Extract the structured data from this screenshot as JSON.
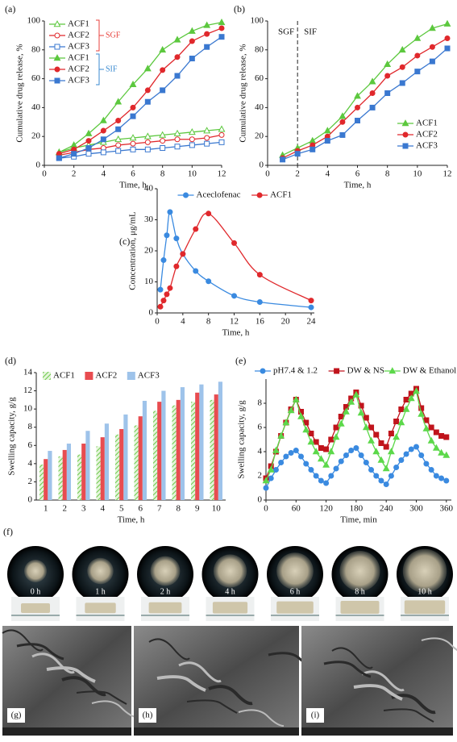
{
  "chart_data": [
    {
      "type": "line",
      "panel_label": "(a)",
      "xlabel": "Time, h",
      "ylabel": "Cumulative drug release, %",
      "xlim": [
        0,
        12
      ],
      "ylim": [
        0,
        100
      ],
      "xticks": [
        0,
        2,
        4,
        6,
        8,
        10,
        12
      ],
      "yticks": [
        0,
        20,
        40,
        60,
        80,
        100
      ],
      "legend": "upper left",
      "x": [
        1,
        2,
        3,
        4,
        5,
        6,
        7,
        8,
        9,
        10,
        11,
        12
      ],
      "groups": [
        {
          "name": "SGF",
          "color": "#e8413c",
          "series": [
            {
              "name": "ACF1",
              "color": "#5cc83e",
              "marker": "triangle",
              "filled": false,
              "values": [
                9,
                12,
                14,
                16,
                18,
                19,
                20,
                21,
                22,
                23,
                24,
                25
              ]
            },
            {
              "name": "ACF2",
              "color": "#e0282c",
              "marker": "circle",
              "filled": false,
              "values": [
                7,
                9,
                11,
                12,
                14,
                15,
                16,
                17,
                18,
                18,
                19,
                21
              ]
            },
            {
              "name": "ACF3",
              "color": "#3a78d0",
              "marker": "square",
              "filled": false,
              "values": [
                5,
                6,
                8,
                9,
                10,
                11,
                11,
                12,
                13,
                14,
                15,
                16
              ]
            }
          ]
        },
        {
          "name": "SIF",
          "color": "#3a8ad0",
          "series": [
            {
              "name": "ACF1",
              "color": "#5cc83e",
              "marker": "triangle",
              "filled": true,
              "values": [
                9,
                14,
                22,
                31,
                44,
                56,
                67,
                80,
                87,
                93,
                97,
                99
              ]
            },
            {
              "name": "ACF2",
              "color": "#e0282c",
              "marker": "circle",
              "filled": true,
              "values": [
                8,
                11,
                17,
                24,
                31,
                40,
                52,
                66,
                75,
                86,
                91,
                95
              ]
            },
            {
              "name": "ACF3",
              "color": "#3a78d0",
              "marker": "square",
              "filled": true,
              "values": [
                5,
                8,
                12,
                18,
                25,
                34,
                44,
                52,
                62,
                74,
                82,
                89
              ]
            }
          ]
        }
      ]
    },
    {
      "type": "line",
      "panel_label": "(b)",
      "xlabel": "Time, h",
      "ylabel": "Cumulative drug release, %",
      "xlim": [
        0,
        12
      ],
      "ylim": [
        0,
        100
      ],
      "xticks": [
        0,
        2,
        4,
        6,
        8,
        10,
        12
      ],
      "yticks": [
        0,
        20,
        40,
        60,
        80,
        100
      ],
      "legend": "lower right",
      "divider_x": 2,
      "annotations": [
        "SGF",
        "SIF"
      ],
      "x": [
        1,
        2,
        3,
        4,
        5,
        6,
        7,
        8,
        9,
        10,
        11,
        12
      ],
      "series": [
        {
          "name": "ACF1",
          "color": "#5cc83e",
          "marker": "triangle",
          "filled": true,
          "values": [
            7,
            12,
            17,
            24,
            34,
            48,
            58,
            70,
            80,
            88,
            95,
            98
          ]
        },
        {
          "name": "ACF2",
          "color": "#e0282c",
          "marker": "circle",
          "filled": true,
          "values": [
            5,
            10,
            14,
            20,
            30,
            40,
            50,
            62,
            68,
            76,
            82,
            88
          ]
        },
        {
          "name": "ACF3",
          "color": "#3a78d0",
          "marker": "square",
          "filled": true,
          "values": [
            4,
            8,
            11,
            17,
            21,
            31,
            40,
            50,
            57,
            65,
            72,
            81
          ]
        }
      ]
    },
    {
      "type": "line",
      "panel_label": "(c)",
      "xlabel": "Time, h",
      "ylabel": "Concentration, μg/mL",
      "xlim": [
        0,
        24.5
      ],
      "ylim": [
        0,
        40
      ],
      "xticks": [
        0,
        4,
        8,
        12,
        16,
        20,
        24
      ],
      "yticks": [
        0,
        10,
        20,
        30,
        40
      ],
      "legend": "upper center",
      "smooth": true,
      "series": [
        {
          "name": "Aceclofenac",
          "color": "#3a8ae0",
          "marker": "circle",
          "filled": true,
          "x": [
            0.5,
            1,
            1.5,
            2,
            3,
            4,
            6,
            8,
            12,
            16,
            24
          ],
          "values": [
            7.5,
            17,
            25,
            32.5,
            24,
            19,
            13.5,
            10.2,
            5.5,
            3.5,
            1.8
          ]
        },
        {
          "name": "ACF1",
          "color": "#e0282c",
          "marker": "circle",
          "filled": true,
          "x": [
            0.5,
            1,
            1.5,
            2,
            3,
            4,
            6,
            8,
            12,
            16,
            24
          ],
          "values": [
            2,
            4,
            6,
            8,
            15,
            19,
            27,
            32,
            22.5,
            12.3,
            4
          ]
        }
      ]
    },
    {
      "type": "bar",
      "panel_label": "(d)",
      "xlabel": "Time, h",
      "ylabel": "Swelling capacity, g/g",
      "ylim": [
        0,
        14
      ],
      "yticks": [
        0,
        2,
        4,
        6,
        8,
        10,
        12,
        14
      ],
      "legend": "upper left",
      "categories": [
        "1",
        "2",
        "3",
        "4",
        "5",
        "6",
        "7",
        "8",
        "9",
        "10"
      ],
      "series": [
        {
          "name": "ACF1",
          "color": "#6cc84a",
          "pattern": "hatch",
          "values": [
            3.9,
            4.8,
            5.0,
            5.9,
            7.2,
            8.2,
            9.8,
            10.4,
            10.8,
            11.0
          ]
        },
        {
          "name": "ACF2",
          "color": "#e84c50",
          "values": [
            4.5,
            5.5,
            6.2,
            6.9,
            7.8,
            9.2,
            10.8,
            11.0,
            11.8,
            11.6
          ]
        },
        {
          "name": "ACF3",
          "color": "#9ec3ea",
          "values": [
            5.4,
            6.2,
            7.6,
            8.4,
            9.4,
            10.9,
            12.0,
            12.4,
            12.7,
            13.0
          ]
        }
      ]
    },
    {
      "type": "line",
      "panel_label": "(e)",
      "xlabel": "Time, min",
      "ylabel": "Swelling capacity, g/g",
      "xlim": [
        0,
        370
      ],
      "ylim": [
        0,
        10
      ],
      "xticks": [
        0,
        60,
        120,
        180,
        240,
        300,
        360
      ],
      "yticks": [
        0,
        2,
        4,
        6,
        8
      ],
      "legend": "upper center",
      "x": [
        0,
        10,
        20,
        30,
        40,
        50,
        60,
        70,
        80,
        90,
        100,
        110,
        120,
        130,
        140,
        150,
        160,
        170,
        180,
        190,
        200,
        210,
        220,
        230,
        240,
        250,
        260,
        270,
        280,
        290,
        300,
        310,
        320,
        330,
        340,
        350,
        360
      ],
      "series": [
        {
          "name": "pH7.4 & 1.2",
          "color": "#3a8ae0",
          "marker": "circle",
          "filled": true,
          "values": [
            1.0,
            1.8,
            2.5,
            3.1,
            3.6,
            3.9,
            4.1,
            3.6,
            3.0,
            2.5,
            2.0,
            1.6,
            1.4,
            2.0,
            2.6,
            3.2,
            3.7,
            4.1,
            4.3,
            3.7,
            3.1,
            2.5,
            2.0,
            1.6,
            1.3,
            2.0,
            2.7,
            3.3,
            3.8,
            4.2,
            4.4,
            3.7,
            3.0,
            2.5,
            2.0,
            1.8,
            1.6
          ]
        },
        {
          "name": "DW & NS",
          "color": "#c0141c",
          "marker": "square",
          "filled": true,
          "values": [
            1.8,
            2.8,
            4.0,
            5.3,
            6.4,
            7.5,
            8.3,
            7.3,
            6.4,
            5.5,
            4.8,
            4.3,
            4.2,
            5.0,
            6.0,
            6.9,
            7.7,
            8.4,
            8.9,
            7.8,
            6.8,
            6.0,
            5.4,
            4.7,
            4.4,
            5.5,
            6.5,
            7.5,
            8.3,
            8.8,
            9.2,
            7.6,
            6.6,
            6.0,
            5.6,
            5.3,
            5.2
          ]
        },
        {
          "name": "DW & Ethanol",
          "color": "#5cd84a",
          "marker": "triangle",
          "filled": true,
          "values": [
            1.6,
            2.5,
            4.1,
            5.3,
            6.4,
            7.4,
            8.3,
            6.9,
            5.8,
            4.8,
            4.0,
            3.4,
            2.9,
            4.0,
            5.2,
            6.3,
            7.3,
            8.1,
            8.7,
            7.2,
            6.0,
            4.9,
            4.0,
            3.3,
            2.6,
            4.0,
            5.2,
            6.4,
            7.5,
            8.4,
            9.0,
            7.1,
            5.9,
            4.9,
            4.3,
            3.9,
            3.7
          ]
        }
      ]
    }
  ],
  "photos": {
    "panel_label": "(f)",
    "times": [
      "0 h",
      "1 h",
      "2 h",
      "4 h",
      "6 h",
      "8 h",
      "10 h"
    ]
  },
  "sem": [
    {
      "panel_label": "(g)"
    },
    {
      "panel_label": "(h)"
    },
    {
      "panel_label": "(i)"
    }
  ]
}
